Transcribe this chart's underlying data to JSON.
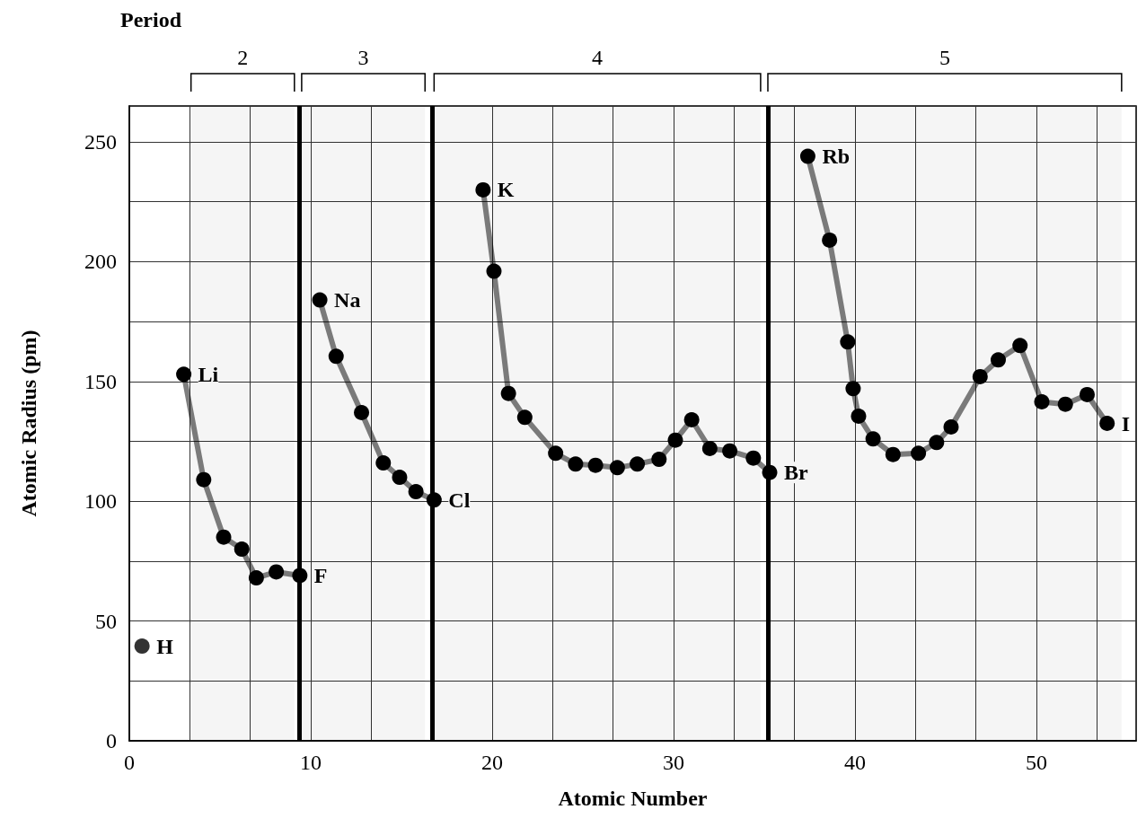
{
  "chart_data": {
    "type": "line",
    "xlabel": "Atomic Number",
    "ylabel": "Atomic Radius (pm)",
    "xlim": [
      0,
      55.5
    ],
    "xticks": [
      0,
      10,
      20,
      30,
      40,
      50
    ],
    "ylim": [
      0,
      265
    ],
    "yticks": [
      0,
      50,
      100,
      150,
      200,
      250
    ],
    "grid": true,
    "marker": "circle",
    "line_style": "solid",
    "series": [
      {
        "type": "scatter",
        "color": "#000000",
        "x": [
          0.7
        ],
        "values": [
          39.5
        ]
      },
      {
        "color": "#000000",
        "x": [
          3.0,
          4.1,
          5.2,
          6.2,
          7.0,
          8.1,
          9.4
        ],
        "values": [
          153,
          109,
          85,
          80,
          68,
          70.5,
          69
        ]
      },
      {
        "color": "#000000",
        "x": [
          10.5,
          11.4,
          12.8,
          14.0,
          14.9,
          15.8,
          16.8
        ],
        "values": [
          184,
          160.5,
          137,
          116,
          110,
          104,
          100.5
        ]
      },
      {
        "color": "#000000",
        "x": [
          19.5,
          20.1,
          20.9,
          21.8,
          23.5,
          24.6,
          25.7,
          26.9,
          28.0,
          29.2,
          30.1,
          31.0,
          32.0,
          33.1,
          34.4,
          35.3
        ],
        "values": [
          230,
          196,
          145,
          135,
          120,
          115.5,
          115,
          114,
          115.5,
          117.5,
          125.5,
          134,
          122,
          121,
          118,
          112
        ]
      },
      {
        "color": "#000000",
        "x": [
          37.4,
          38.6,
          39.6,
          39.9,
          40.2,
          41.0,
          42.1,
          43.5,
          44.5,
          45.3,
          46.9,
          47.9,
          49.1,
          50.3,
          51.6,
          52.8,
          53.9
        ],
        "values": [
          244,
          209,
          166.5,
          147,
          135.5,
          126,
          119.5,
          120,
          124.5,
          131,
          152,
          159,
          165,
          141.5,
          140.5,
          144.5,
          132.5
        ]
      }
    ],
    "ref_lines": [
      {
        "axis": "x",
        "value": 9.35,
        "color": "#000000"
      },
      {
        "axis": "x",
        "value": 16.7,
        "color": "#000000"
      },
      {
        "axis": "x",
        "value": 35.2,
        "color": "#000000"
      }
    ],
    "bands": [
      {
        "axis": "x",
        "from": 3.4,
        "to": 9.1,
        "label": "2"
      },
      {
        "axis": "x",
        "from": 9.5,
        "to": 16.3,
        "label": "3"
      },
      {
        "axis": "x",
        "from": 16.8,
        "to": 34.8,
        "label": "4"
      },
      {
        "axis": "x",
        "from": 35.2,
        "to": 54.7,
        "label": "5"
      }
    ],
    "annotations": [
      "Period",
      {
        "text": "H",
        "x": 0.7,
        "y": 39.5
      },
      {
        "text": "Li",
        "x": 3.0,
        "y": 153
      },
      {
        "text": "F",
        "x": 9.4,
        "y": 69
      },
      {
        "text": "Na",
        "x": 10.5,
        "y": 184
      },
      {
        "text": "Cl",
        "x": 16.8,
        "y": 100.5
      },
      {
        "text": "K",
        "x": 19.5,
        "y": 230
      },
      {
        "text": "Br",
        "x": 35.3,
        "y": 112
      },
      {
        "text": "Rb",
        "x": 37.4,
        "y": 244
      },
      {
        "text": "I",
        "x": 53.9,
        "y": 132.5
      }
    ]
  }
}
